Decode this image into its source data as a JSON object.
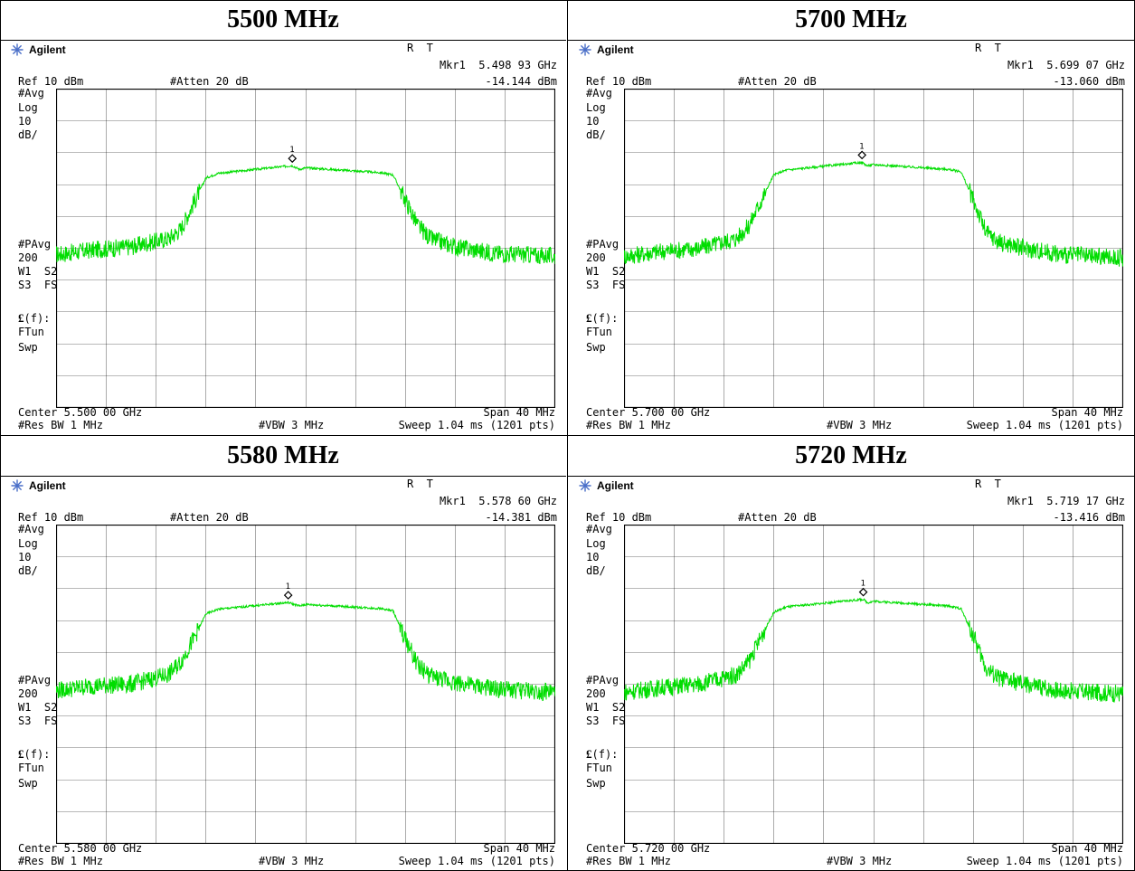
{
  "common": {
    "brand": "Agilent",
    "mode": "R  T",
    "ref": "Ref 10 dBm",
    "atten": "#Atten 20 dB",
    "avg": "#Avg",
    "log": "Log",
    "scale": "10",
    "unit": "dB/",
    "pavg": "#PAvg",
    "count": "200",
    "w1s2": "W1  S2",
    "s3fs": "S3  FS",
    "ef": "(f):",
    "ftun": "FTun",
    "swp": "Swp",
    "span": "Span 40 MHz",
    "rbw": "#Res BW 1 MHz",
    "vbw": "#VBW 3 MHz",
    "sweep": "Sweep 1.04 ms (1201 pts)",
    "trace_color": "#00dd00",
    "grid_color": "#000000"
  },
  "panels": [
    {
      "caption": "5500 MHz",
      "marker_freq": "Mkr1  5.498 93 GHz",
      "marker_level": "-14.144 dBm",
      "center": "Center 5.500 00 GHz",
      "marker_label": "1"
    },
    {
      "caption": "5700 MHz",
      "marker_freq": "Mkr1  5.699 07 GHz",
      "marker_level": "-13.060 dBm",
      "center": "Center 5.700 00 GHz",
      "marker_label": "1"
    },
    {
      "caption": "5580 MHz",
      "marker_freq": "Mkr1  5.578 60 GHz",
      "marker_level": "-14.381 dBm",
      "center": "Center 5.580 00 GHz",
      "marker_label": "1"
    },
    {
      "caption": "5720 MHz",
      "marker_freq": "Mkr1  5.719 17 GHz",
      "marker_level": "-13.416 dBm",
      "center": "Center 5.720 00 GHz",
      "marker_label": "1"
    }
  ],
  "chart_data": [
    {
      "type": "line",
      "title": "5500 MHz",
      "xlim": [
        5480,
        5520
      ],
      "ylim": [
        -90,
        10
      ],
      "y_scale_per_div": 10,
      "grid": true,
      "marker": {
        "x": 5498.93,
        "y": -14.144
      },
      "x": [
        5480,
        5483,
        5486,
        5489,
        5490,
        5491,
        5492,
        5493,
        5498.93,
        5499.5,
        5500,
        5506,
        5507,
        5508,
        5509,
        5510,
        5512,
        5515,
        5520
      ],
      "y": [
        -42,
        -40.5,
        -39.5,
        -37,
        -34,
        -26,
        -18,
        -16.5,
        -14.1,
        -15.3,
        -14.8,
        -16.3,
        -17,
        -25,
        -33,
        -37,
        -39.5,
        -41.5,
        -42.5
      ]
    },
    {
      "type": "line",
      "title": "5700 MHz",
      "xlim": [
        5680,
        5720
      ],
      "ylim": [
        -90,
        10
      ],
      "y_scale_per_div": 10,
      "grid": true,
      "marker": {
        "x": 5699.07,
        "y": -13.06
      },
      "x": [
        5680,
        5683,
        5686,
        5689,
        5690,
        5691,
        5692,
        5693,
        5699.07,
        5699.5,
        5700,
        5706,
        5707,
        5708,
        5709,
        5710,
        5712,
        5715,
        5720
      ],
      "y": [
        -42.5,
        -41,
        -40,
        -37,
        -33,
        -25,
        -17,
        -15.5,
        -13.1,
        -14.2,
        -13.8,
        -15.3,
        -16,
        -25,
        -35,
        -38,
        -40,
        -42,
        -43
      ]
    },
    {
      "type": "line",
      "title": "5580 MHz",
      "xlim": [
        5560,
        5600
      ],
      "ylim": [
        -90,
        10
      ],
      "y_scale_per_div": 10,
      "grid": true,
      "marker": {
        "x": 5578.6,
        "y": -14.381
      },
      "x": [
        5560,
        5563,
        5566,
        5569,
        5570,
        5571,
        5572,
        5573,
        5578.6,
        5579.5,
        5580,
        5586,
        5587,
        5588,
        5589,
        5590,
        5592,
        5595,
        5600
      ],
      "y": [
        -42,
        -40.5,
        -40,
        -37,
        -33,
        -26,
        -18,
        -16.5,
        -14.4,
        -15.5,
        -15,
        -16.3,
        -17,
        -26,
        -34,
        -37.5,
        -39.5,
        -41.5,
        -42.5
      ]
    },
    {
      "type": "line",
      "title": "5720 MHz",
      "xlim": [
        5700,
        5740
      ],
      "ylim": [
        -90,
        10
      ],
      "y_scale_per_div": 10,
      "grid": true,
      "marker": {
        "x": 5719.17,
        "y": -13.416
      },
      "x": [
        5700,
        5703,
        5706,
        5709,
        5710,
        5711,
        5712,
        5713,
        5719.17,
        5719.5,
        5720,
        5726,
        5727,
        5728,
        5729,
        5730,
        5732,
        5735,
        5740
      ],
      "y": [
        -42.5,
        -41,
        -40,
        -37,
        -33,
        -25,
        -17.5,
        -15.8,
        -13.4,
        -14.5,
        -14,
        -15.5,
        -16.3,
        -25,
        -35,
        -38,
        -40,
        -42,
        -43
      ]
    }
  ]
}
